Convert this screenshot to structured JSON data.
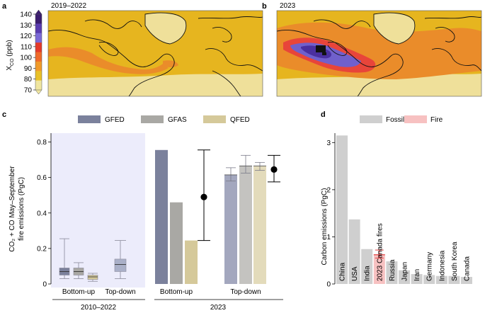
{
  "panels": {
    "a": {
      "letter": "a",
      "title": "2019–2022"
    },
    "b": {
      "letter": "b",
      "title": "2023"
    },
    "c": {
      "letter": "c"
    },
    "d": {
      "letter": "d"
    }
  },
  "colorbar": {
    "label_main": "X",
    "label_sub": "CO",
    "label_unit": " (ppb)",
    "ticks": [
      "140",
      "130",
      "120",
      "110",
      "100",
      "90",
      "80",
      "70"
    ],
    "colors": [
      "#3b1c6e",
      "#5a3cb0",
      "#7b6ad6",
      "#e43a2a",
      "#ef6a2a",
      "#f09a2a",
      "#e8c028",
      "#f0e6a0"
    ]
  },
  "chart_data": [
    {
      "id": "c",
      "type": "bar",
      "ylabel_line1": "CO₂ + CO May–September",
      "ylabel_line2": "fire emissions (PgC)",
      "ylim": [
        0,
        0.85
      ],
      "yticks": [
        "0",
        "0.2",
        "0.4",
        "0.6",
        "0.8"
      ],
      "legend": [
        {
          "name": "GFED",
          "color": "#7b819c"
        },
        {
          "name": "GFAS",
          "color": "#a9a8a4"
        },
        {
          "name": "QFED",
          "color": "#d5c99a"
        }
      ],
      "group_labels": [
        "Bottom-up",
        "Top-down",
        "Bottom-up",
        "Top-down"
      ],
      "period_labels": [
        "2010–2022",
        "2023"
      ],
      "boxes_2010_2022": {
        "bottom_up": [
          {
            "series": "GFED",
            "min": 0.03,
            "q1": 0.05,
            "median": 0.07,
            "q3": 0.09,
            "max": 0.255
          },
          {
            "series": "GFAS",
            "min": 0.03,
            "q1": 0.05,
            "median": 0.07,
            "q3": 0.09,
            "max": 0.12
          },
          {
            "series": "QFED",
            "min": 0.015,
            "q1": 0.025,
            "median": 0.04,
            "q3": 0.05,
            "max": 0.06
          }
        ],
        "top_down": {
          "min": 0.03,
          "q1": 0.07,
          "median": 0.11,
          "q3": 0.14,
          "max": 0.245
        }
      },
      "bars_2023_bottom_up": [
        {
          "series": "GFED",
          "value": 0.755
        },
        {
          "series": "GFAS",
          "value": 0.46
        },
        {
          "series": "QFED",
          "value": 0.245
        }
      ],
      "bottom_up_mean": {
        "value": 0.49,
        "low": 0.245,
        "high": 0.755
      },
      "bars_2023_top_down": [
        {
          "series": "GFED",
          "value": 0.615,
          "low": 0.58,
          "high": 0.655
        },
        {
          "series": "GFAS",
          "value": 0.665,
          "low": 0.625,
          "high": 0.725
        },
        {
          "series": "QFED",
          "value": 0.665,
          "low": 0.64,
          "high": 0.685
        }
      ],
      "top_down_mean": {
        "value": 0.645,
        "low": 0.575,
        "high": 0.725
      }
    },
    {
      "id": "d",
      "type": "bar",
      "ylabel": "Carbon emissions (PgC)",
      "ylim": [
        0,
        3.2
      ],
      "yticks": [
        "0",
        "1",
        "2",
        "3"
      ],
      "legend": [
        {
          "name": "Fossil",
          "color": "#cfcfcf"
        },
        {
          "name": "Fire",
          "color": "#f7c1c1"
        }
      ],
      "categories": [
        "China",
        "USA",
        "India",
        "2023 Canada fires",
        "Russia",
        "Japan",
        "Iran",
        "Germany",
        "Indonesia",
        "South Korea",
        "Canada"
      ],
      "values": [
        3.15,
        1.37,
        0.74,
        0.62,
        0.48,
        0.29,
        0.21,
        0.19,
        0.17,
        0.17,
        0.15
      ],
      "kinds": [
        "fossil",
        "fossil",
        "fossil",
        "fire",
        "fossil",
        "fossil",
        "fossil",
        "fossil",
        "fossil",
        "fossil",
        "fossil"
      ],
      "fire_error": {
        "low": 0.55,
        "high": 0.72
      }
    }
  ]
}
